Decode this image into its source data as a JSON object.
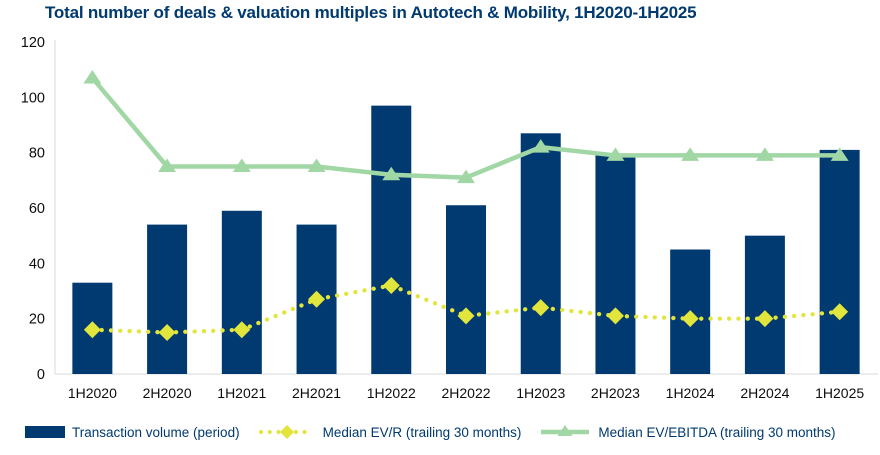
{
  "chart_data": {
    "type": "combo-bar-line",
    "title": "Total number of deals & valuation multiples in Autotech & Mobility, 1H2020-1H2025",
    "categories": [
      "1H2020",
      "2H2020",
      "1H2021",
      "2H2021",
      "1H2022",
      "2H2022",
      "1H2023",
      "2H2023",
      "1H2024",
      "2H2024",
      "1H2025"
    ],
    "series": [
      {
        "name": "Transaction volume (period)",
        "type": "bar",
        "marker": "none",
        "values": [
          33,
          54,
          59,
          54,
          97,
          61,
          87,
          79,
          45,
          50,
          81
        ]
      },
      {
        "name": "Median EV/R (trailing 30 months)",
        "type": "line",
        "style": "dotted",
        "marker": "diamond",
        "values": [
          16,
          15,
          16,
          27,
          32,
          21,
          24,
          21,
          20,
          20,
          22.5
        ]
      },
      {
        "name": "Median EV/EBITDA (trailing 30 months)",
        "type": "line",
        "style": "solid",
        "marker": "triangle",
        "values": [
          107,
          75,
          75,
          75,
          72,
          71,
          82,
          79,
          79,
          79,
          79
        ]
      }
    ],
    "xlabel": "",
    "ylabel": "",
    "ylim": [
      0,
      120
    ],
    "ytick_step": 20,
    "grid": false,
    "legend_position": "bottom"
  },
  "colors": {
    "navy": "#003A70",
    "green": "#A0D7A5",
    "yellow": "#E2E53C",
    "axis_line": "#D9D9D9",
    "tick_text": "#0D0D0D"
  },
  "legend": {
    "items": [
      {
        "label": "Transaction volume (period)",
        "marker": "bar-swatch"
      },
      {
        "label": "Median EV/R (trailing 30 months)",
        "marker": "dotted-diamond"
      },
      {
        "label": "Median EV/EBITDA (trailing 30 months)",
        "marker": "line-triangle"
      }
    ]
  }
}
